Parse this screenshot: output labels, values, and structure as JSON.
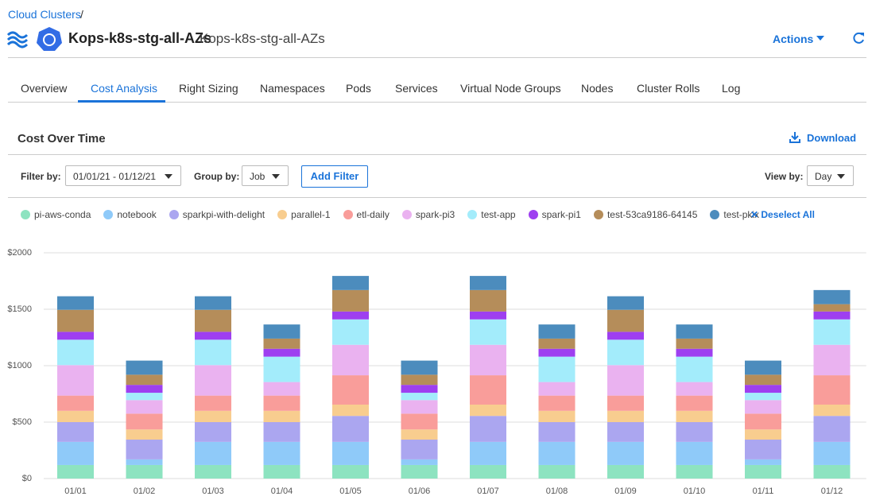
{
  "breadcrumb": {
    "link": "Cloud Clusters",
    "separator": "/"
  },
  "header": {
    "title": "Kops-k8s-stg-all-AZs",
    "subtitle": "Kops-k8s-stg-all-AZs",
    "actions": "Actions"
  },
  "tabs": [
    "Overview",
    "Cost Analysis",
    "Right Sizing",
    "Namespaces",
    "Pods",
    "Services",
    "Virtual Node Groups",
    "Nodes",
    "Cluster Rolls",
    "Log"
  ],
  "section": {
    "title": "Cost Over Time",
    "download": "Download"
  },
  "filters": {
    "filter_label": "Filter by:",
    "date_range": "01/01/21 - 01/12/21",
    "group_label": "Group by:",
    "group_value": "Job",
    "add_filter": "Add Filter",
    "view_label": "View by:",
    "view_value": "Day"
  },
  "deselect_all": "Deselect All",
  "chart_data": {
    "type": "stacked_bar",
    "categories": [
      "01/01",
      "01/02",
      "01/03",
      "01/04",
      "01/05",
      "01/06",
      "01/07",
      "01/08",
      "01/09",
      "01/10",
      "01/11",
      "01/12"
    ],
    "series": [
      {
        "name": "pi-aws-conda",
        "color": "#8de3c0",
        "values": [
          120,
          120,
          120,
          120,
          120,
          120,
          120,
          120,
          120,
          120,
          120,
          120
        ]
      },
      {
        "name": "notebook",
        "color": "#8fcaf9",
        "values": [
          205,
          50,
          205,
          205,
          205,
          50,
          205,
          205,
          205,
          205,
          50,
          205
        ]
      },
      {
        "name": "sparkpi-with-delight",
        "color": "#aba6f0",
        "values": [
          175,
          175,
          175,
          175,
          230,
          175,
          230,
          175,
          175,
          175,
          175,
          230
        ]
      },
      {
        "name": "parallel-1",
        "color": "#f8cd8f",
        "values": [
          100,
          90,
          100,
          100,
          100,
          90,
          100,
          100,
          100,
          100,
          90,
          100
        ]
      },
      {
        "name": "etl-daily",
        "color": "#f99d9a",
        "values": [
          135,
          140,
          135,
          135,
          260,
          140,
          260,
          135,
          135,
          135,
          140,
          260
        ]
      },
      {
        "name": "spark-pi3",
        "color": "#eab2f0",
        "values": [
          270,
          120,
          270,
          120,
          270,
          120,
          270,
          120,
          270,
          120,
          120,
          270
        ]
      },
      {
        "name": "test-app",
        "color": "#a3ecfb",
        "values": [
          225,
          65,
          225,
          225,
          225,
          65,
          225,
          225,
          225,
          225,
          65,
          225
        ]
      },
      {
        "name": "spark-pi1",
        "color": "#9e3ff0",
        "values": [
          70,
          70,
          70,
          70,
          70,
          70,
          70,
          70,
          70,
          70,
          70,
          70
        ]
      },
      {
        "name": "test-53ca9186-64145",
        "color": "#b58d5a",
        "values": [
          195,
          90,
          195,
          90,
          190,
          90,
          190,
          90,
          195,
          90,
          90,
          65
        ]
      },
      {
        "name": "test-pkix",
        "color": "#4c8cbd",
        "values": [
          120,
          125,
          120,
          125,
          125,
          125,
          125,
          125,
          120,
          125,
          125,
          125
        ]
      }
    ],
    "ylim": [
      0,
      2000
    ],
    "yticks": [
      {
        "value": 0,
        "label": "$0"
      },
      {
        "value": 500,
        "label": "$500"
      },
      {
        "value": 1000,
        "label": "$1000"
      },
      {
        "value": 1500,
        "label": "$1500"
      },
      {
        "value": 2000,
        "label": "$2000"
      }
    ],
    "grid": true
  }
}
